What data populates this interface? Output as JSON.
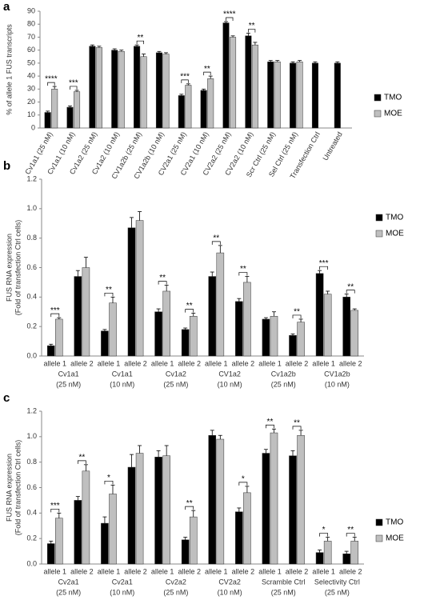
{
  "chart_data": [
    {
      "type": "bar",
      "panel_label": "a",
      "y_label": [
        "% of allele 1 FUS transcripts"
      ],
      "categories": [
        "Cv1a1 (25 nM)",
        "Cv1a1 (10 nM)",
        "Cv1a2 (25 nM)",
        "Cv1a2 (10 nM)",
        "CV1a2b (25 nM)",
        "CV1a2b (10 nM)",
        "CV2a1 (25 nM)",
        "CV2a1 (10 nM)",
        "CV2a2 (25 nM)",
        "CV2a2 (10 nM)",
        "Scr Ctrl (25 nM)",
        "Sel Ctrl (25 nM)",
        "Transfection Ctrl",
        "Untreated"
      ],
      "series": [
        {
          "name": "TMO",
          "color": "#000000",
          "values": [
            12,
            16,
            63,
            60,
            63,
            58,
            25,
            29,
            81,
            71,
            51,
            50,
            50,
            50
          ],
          "errors": [
            1,
            1,
            1,
            1,
            1,
            1,
            1,
            1,
            1,
            2,
            1,
            1,
            1,
            1
          ]
        },
        {
          "name": "MOE",
          "color": "#bfbfbf",
          "values": [
            30,
            28,
            62,
            59,
            55,
            57,
            33,
            38,
            70,
            64,
            51,
            51,
            null,
            null
          ],
          "errors": [
            2,
            1,
            1,
            1,
            2,
            1,
            1,
            2,
            1,
            2,
            1,
            1,
            null,
            null
          ]
        }
      ],
      "significance": [
        "****",
        "***",
        null,
        null,
        "**",
        null,
        "***",
        "**",
        "****",
        "**",
        null,
        null,
        null,
        null
      ],
      "ylim": [
        0,
        90
      ],
      "yticks": [
        0,
        10,
        20,
        30,
        40,
        50,
        60,
        70,
        80,
        90
      ]
    },
    {
      "type": "bar",
      "panel_label": "b",
      "y_label": [
        "FUS RNA expression",
        "(Fold of transfection Ctrl cells)"
      ],
      "categories": [
        "allele 1",
        "allele 2",
        "allele 1",
        "allele 2",
        "allele 1",
        "allele 2",
        "allele 1",
        "allele 2",
        "allele 1",
        "allele 2",
        "allele 1",
        "allele 2"
      ],
      "groups": [
        [
          "Cv1a1",
          "(25 nM)"
        ],
        [
          "Cv1a1",
          "(10 nM)"
        ],
        [
          "Cv1a2",
          "(25 nM)"
        ],
        [
          "CV1a2",
          "(10 nM)"
        ],
        [
          "Cv1a2b",
          "(25 nM)"
        ],
        [
          "CV1a2b",
          "(10 nM)"
        ]
      ],
      "series": [
        {
          "name": "TMO",
          "color": "#000000",
          "values": [
            0.07,
            0.54,
            0.17,
            0.87,
            0.3,
            0.18,
            0.54,
            0.37,
            0.25,
            0.14,
            0.56,
            0.4
          ],
          "errors": [
            0.01,
            0.04,
            0.01,
            0.07,
            0.02,
            0.01,
            0.03,
            0.02,
            0.01,
            0.01,
            0.02,
            0.02
          ]
        },
        {
          "name": "MOE",
          "color": "#bfbfbf",
          "values": [
            0.25,
            0.6,
            0.36,
            0.92,
            0.44,
            0.27,
            0.7,
            0.5,
            0.27,
            0.23,
            0.42,
            0.31
          ],
          "errors": [
            0.01,
            0.07,
            0.04,
            0.06,
            0.04,
            0.02,
            0.05,
            0.04,
            0.03,
            0.02,
            0.02,
            0.01
          ]
        }
      ],
      "significance": [
        "***",
        null,
        "**",
        null,
        "**",
        "**",
        "**",
        "**",
        null,
        "**",
        "***",
        "**"
      ],
      "ylim": [
        0,
        1.2
      ],
      "yticks": [
        {
          "value": 0,
          "label": "0.0"
        },
        0.2,
        0.4,
        0.6,
        0.8,
        {
          "value": 1,
          "label": "1.0"
        },
        1.2
      ]
    },
    {
      "type": "bar",
      "panel_label": "c",
      "y_label": [
        "FUS RNA expression",
        "(Fold of transfection Ctrl cells)"
      ],
      "categories": [
        "allele 1",
        "allele 2",
        "allele 1",
        "allele 2",
        "allele 1",
        "allele 2",
        "allele 1",
        "allele 2",
        "allele 1",
        "allele 2",
        "allele 1",
        "allele 2"
      ],
      "groups": [
        [
          "Cv2a1",
          "(25 nM)"
        ],
        [
          "Cv2a1",
          "(10 nM)"
        ],
        [
          "Cv2a2",
          "(25 nM)"
        ],
        [
          "CV2a2",
          "(10 nM)"
        ],
        [
          "Scramble Ctrl",
          "(25 nM)"
        ],
        [
          "Selectivity Ctrl",
          "(25 nM)"
        ]
      ],
      "series": [
        {
          "name": "TMO",
          "color": "#000000",
          "values": [
            0.16,
            0.5,
            0.32,
            0.76,
            0.84,
            0.19,
            1.01,
            0.41,
            0.87,
            0.85,
            0.09,
            0.08
          ],
          "errors": [
            0.02,
            0.03,
            0.05,
            0.1,
            0.05,
            0.02,
            0.04,
            0.03,
            0.03,
            0.04,
            0.02,
            0.02
          ]
        },
        {
          "name": "MOE",
          "color": "#bfbfbf",
          "values": [
            0.36,
            0.73,
            0.55,
            0.87,
            0.85,
            0.37,
            0.98,
            0.56,
            1.03,
            1.01,
            0.18,
            0.18
          ],
          "errors": [
            0.04,
            0.05,
            0.07,
            0.06,
            0.08,
            0.05,
            0.03,
            0.05,
            0.03,
            0.04,
            0.03,
            0.03
          ]
        }
      ],
      "significance": [
        "***",
        "**",
        "*",
        null,
        null,
        "**",
        null,
        "*",
        "**",
        "**",
        "*",
        "**"
      ],
      "ylim": [
        0,
        1.2
      ],
      "yticks": [
        {
          "value": 0,
          "label": "0.0"
        },
        0.2,
        0.4,
        0.6,
        0.8,
        {
          "value": 1,
          "label": "1.0"
        },
        1.2
      ]
    }
  ]
}
